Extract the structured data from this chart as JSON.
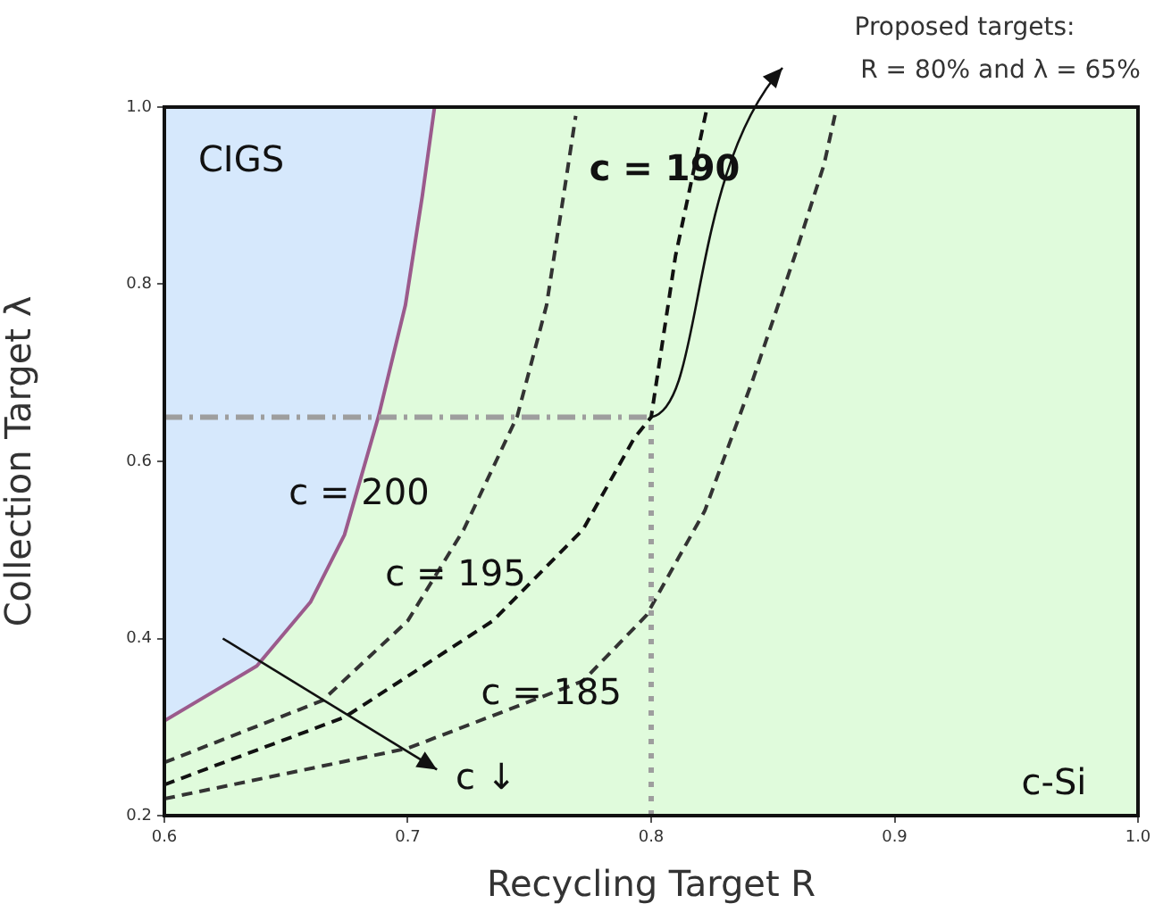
{
  "chart_data": {
    "type": "line",
    "xlabel": "Recycling Target R",
    "ylabel": "Collection Target λ",
    "xlim": [
      0.6,
      1.0
    ],
    "ylim": [
      0.2,
      1.0
    ],
    "xticks": [
      0.6,
      0.7,
      0.8,
      0.9,
      {
        "value": 1,
        "label": "1.0"
      }
    ],
    "yticks": [
      0.2,
      0.4,
      0.6,
      0.8,
      {
        "value": 1,
        "label": "1.0"
      }
    ],
    "grid": false,
    "legend": false,
    "marker": "none",
    "series": [
      {
        "color": "#9b5a8c",
        "x": [
          0.6,
          0.638,
          0.66,
          0.674,
          0.688,
          0.699,
          0.706,
          0.711
        ],
        "values": [
          0.307,
          0.369,
          0.441,
          0.517,
          0.651,
          0.776,
          0.9,
          1.0
        ]
      },
      {
        "color": "#333333",
        "line_style": "dashed",
        "x": [
          0.6,
          0.665,
          0.7,
          0.723,
          0.745,
          0.757,
          0.764,
          0.769
        ],
        "values": [
          0.26,
          0.33,
          0.42,
          0.523,
          0.651,
          0.776,
          0.9,
          0.99
        ]
      },
      {
        "color": "#111111",
        "line_style": "dashed",
        "x": [
          0.6,
          0.674,
          0.735,
          0.772,
          0.793,
          0.8,
          0.81,
          0.823
        ],
        "values": [
          0.235,
          0.311,
          0.42,
          0.523,
          0.626,
          0.65,
          0.832,
          1.0
        ]
      },
      {
        "color": "#333333",
        "line_style": "dashed",
        "x": [
          0.6,
          0.7,
          0.772,
          0.798,
          0.822,
          0.842,
          0.859,
          0.871,
          0.876
        ],
        "values": [
          0.219,
          0.276,
          0.352,
          0.426,
          0.544,
          0.694,
          0.832,
          0.935,
          0.997
        ]
      }
    ],
    "ref_lines": [
      {
        "axis": "x",
        "value": 0.8,
        "color": "#9e9e9e",
        "line_style": "dotted"
      },
      {
        "axis": "y",
        "value": 0.65,
        "color": "#9e9e9e",
        "line_style": "dashed"
      }
    ],
    "annotations": [
      "Proposed targets:",
      "R = 80% and λ = 65%",
      "CIGS",
      "c-Si",
      "c = 195",
      "c = 190",
      "c ↓",
      {
        "text": "c = 200",
        "x": 0.68,
        "y": 0.562
      },
      {
        "text": "c = 185",
        "x": 0.759,
        "y": 0.336
      }
    ]
  }
}
